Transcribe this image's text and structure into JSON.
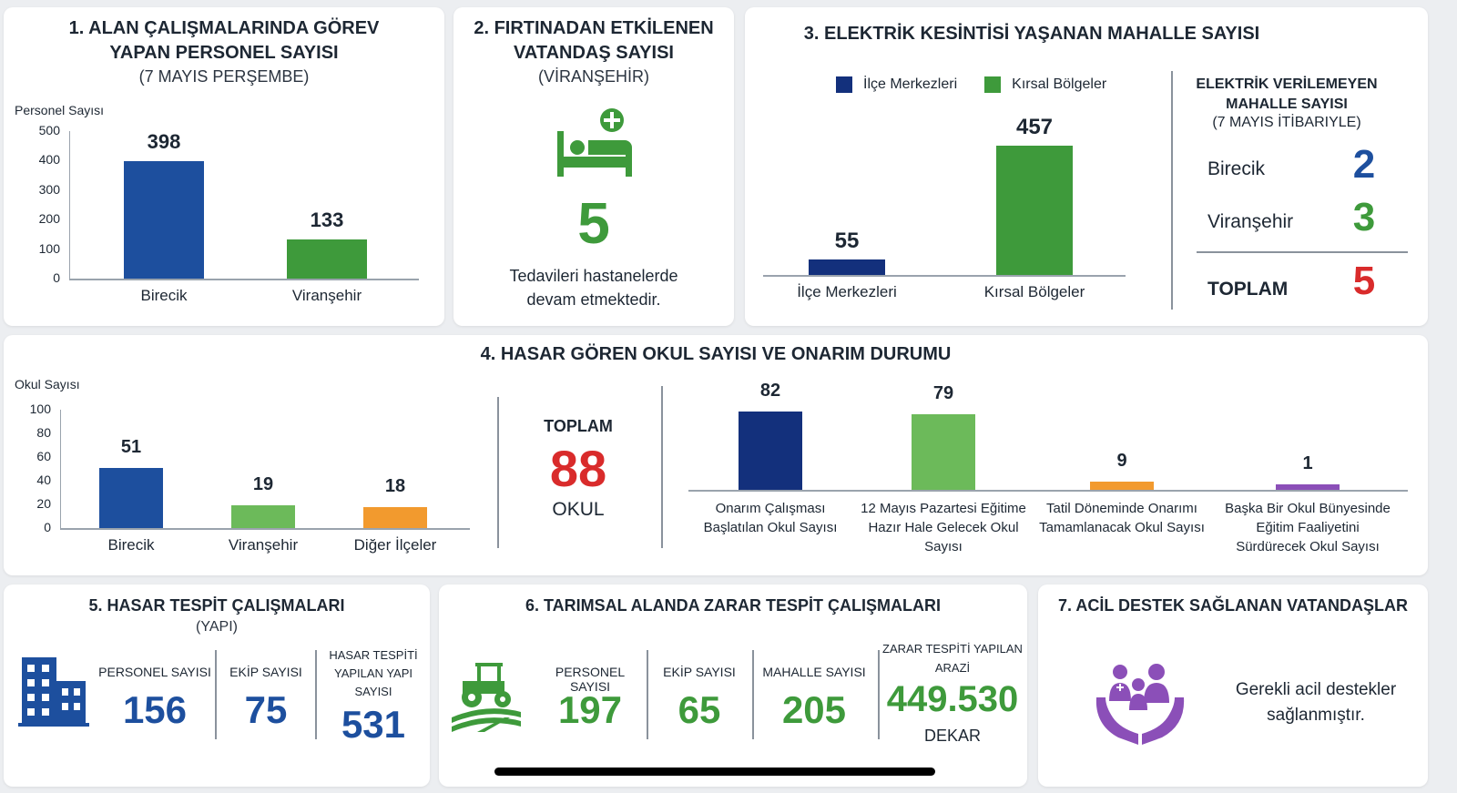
{
  "colors": {
    "blue": "#1d4f9e",
    "navy": "#13307c",
    "green": "#3e9a3b",
    "lightgreen": "#6cba5a",
    "orange": "#f29a2e",
    "purple": "#8b4fb8",
    "red": "#d92b2b"
  },
  "panel1": {
    "title": "1. ALAN ÇALIŞMALARINDA GÖREV YAPAN PERSONEL SAYISI",
    "subtitle": "(7 MAYIS PERŞEMBE)",
    "ylabel": "Personel Sayısı"
  },
  "panel2": {
    "title": "2. FIRTINADAN ETKİLENEN VATANDAŞ SAYISI",
    "subtitle": "(VİRANŞEHİR)",
    "icon": "hospital-bed-icon",
    "value": "5",
    "desc": "Tedavileri hastanelerde devam etmektedir."
  },
  "panel3": {
    "title": "3. ELEKTRİK KESİNTİSİ YAŞANAN MAHALLE SAYISI",
    "legend": [
      "İlçe Merkezleri",
      "Kırsal Bölgeler"
    ],
    "side_title": "ELEKTRİK VERİLEMEYEN MAHALLE SAYISI",
    "side_subtitle": "(7 MAYIS İTİBARIYLE)",
    "rows": [
      {
        "label": "Birecik",
        "value": "2"
      },
      {
        "label": "Viranşehir",
        "value": "3"
      }
    ],
    "total_label": "TOPLAM",
    "total_value": "5"
  },
  "panel4": {
    "title": "4. HASAR GÖREN OKUL SAYISI VE ONARIM DURUMU",
    "ylabel": "Okul Sayısı",
    "total_label": "TOPLAM",
    "total_value": "88",
    "total_unit": "OKUL"
  },
  "panel5": {
    "title": "5. HASAR TESPİT ÇALIŞMALARI",
    "subtitle": "(YAPI)",
    "icon": "building-icon",
    "stats": [
      {
        "label": "PERSONEL SAYISI",
        "value": "156"
      },
      {
        "label": "EKİP SAYISI",
        "value": "75"
      },
      {
        "label": "HASAR TESPİTİ YAPILAN YAPI SAYISI",
        "value": "531"
      }
    ]
  },
  "panel6": {
    "title": "6. TARIMSAL ALANDA ZARAR TESPİT ÇALIŞMALARI",
    "icon": "tractor-icon",
    "stats": [
      {
        "label": "PERSONEL SAYISI",
        "value": "197"
      },
      {
        "label": "EKİP SAYISI",
        "value": "65"
      },
      {
        "label": "MAHALLE SAYISI",
        "value": "205"
      },
      {
        "label": "ZARAR TESPİTİ YAPILAN ARAZİ",
        "value": "449.530",
        "unit": "DEKAR"
      }
    ]
  },
  "panel7": {
    "title": "7. ACİL DESTEK SAĞLANAN VATANDAŞLAR",
    "icon": "family-care-icon",
    "desc": "Gerekli acil destekler sağlanmıştır."
  },
  "chart_data": [
    {
      "type": "bar",
      "title": "1. ALAN ÇALIŞMALARINDA GÖREV YAPAN PERSONEL SAYISI",
      "ylabel": "Personel Sayısı",
      "ylim": [
        0,
        500
      ],
      "yticks": [
        0,
        100,
        200,
        300,
        400,
        500
      ],
      "categories": [
        "Birecik",
        "Viranşehir"
      ],
      "values": [
        398,
        133
      ],
      "colors": [
        "#1d4f9e",
        "#3e9a3b"
      ]
    },
    {
      "type": "bar",
      "title": "3. ELEKTRİK KESİNTİSİ YAŞANAN MAHALLE SAYISI",
      "categories": [
        "İlçe Merkezleri",
        "Kırsal Bölgeler"
      ],
      "values": [
        55,
        457
      ],
      "colors": [
        "#13307c",
        "#3e9a3b"
      ]
    },
    {
      "type": "bar",
      "title": "4. HASAR GÖREN OKUL SAYISI",
      "ylabel": "Okul Sayısı",
      "ylim": [
        0,
        100
      ],
      "yticks": [
        0,
        20,
        40,
        60,
        80,
        100
      ],
      "categories": [
        "Birecik",
        "Viranşehir",
        "Diğer İlçeler"
      ],
      "values": [
        51,
        19,
        18
      ],
      "colors": [
        "#1d4f9e",
        "#6cba5a",
        "#f29a2e"
      ]
    },
    {
      "type": "bar",
      "title": "ONARIM DURUMU",
      "categories": [
        "Onarım Çalışması Başlatılan Okul Sayısı",
        "12 Mayıs Pazartesi Eğitime Hazır Hale Gelecek Okul Sayısı",
        "Tatil Döneminde Onarımı Tamamlanacak Okul Sayısı",
        "Başka Bir Okul Bünyesinde Eğitim Faaliyetini Sürdürecek Okul Sayısı"
      ],
      "values": [
        82,
        79,
        9,
        1
      ],
      "colors": [
        "#13307c",
        "#6cba5a",
        "#f29a2e",
        "#8b4fb8"
      ]
    }
  ]
}
